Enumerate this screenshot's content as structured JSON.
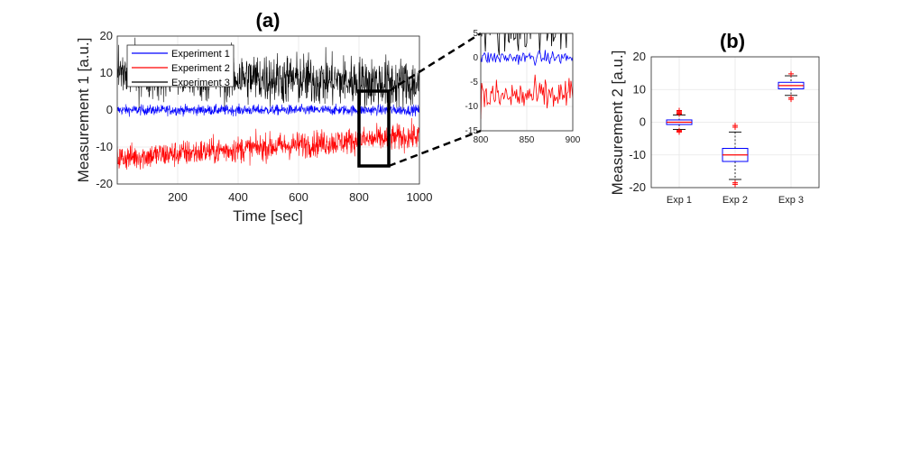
{
  "chart_data": [
    {
      "id": "a",
      "type": "line",
      "title": "(a)",
      "xlabel": "Time [sec]",
      "ylabel": "Measurement 1 [a.u.]",
      "xlim": [
        0,
        1000
      ],
      "ylim": [
        -20,
        20
      ],
      "xticks": [
        200,
        400,
        600,
        800,
        1000
      ],
      "yticks": [
        -20,
        -10,
        0,
        10,
        20
      ],
      "grid": true,
      "legend": "top-left",
      "highlight_box": {
        "x": [
          800,
          900
        ],
        "y": [
          -15,
          5
        ]
      },
      "series": [
        {
          "name": "Experiment 1",
          "color": "#0000ff",
          "mean": 0,
          "spread": 0.7,
          "trend": [
            0,
            0
          ]
        },
        {
          "name": "Experiment 2",
          "color": "#ff0000",
          "mean": -10,
          "spread": 1.8,
          "trend": [
            -13,
            -7
          ]
        },
        {
          "name": "Experiment 3",
          "color": "#000000",
          "mean": 10,
          "spread": 3.5,
          "trend": [
            10,
            7
          ]
        }
      ]
    },
    {
      "id": "a-inset",
      "type": "line",
      "title": "",
      "xlim": [
        800,
        900
      ],
      "ylim": [
        -15,
        5
      ],
      "xticks": [
        800,
        850,
        900
      ],
      "yticks": [
        -15,
        -10,
        -5,
        0,
        5
      ],
      "grid": true
    },
    {
      "id": "b",
      "type": "box",
      "title": "(b)",
      "xlabel": "",
      "ylabel": "Measurement 2 [a.u.]",
      "ylim": [
        -20,
        20
      ],
      "yticks": [
        -20,
        -10,
        0,
        10,
        20
      ],
      "grid": true,
      "box_color": "#0000ff",
      "median_color": "#ff0000",
      "outlier_color": "#ff0000",
      "categories": [
        "Exp 1",
        "Exp 2",
        "Exp 3"
      ],
      "boxes": [
        {
          "min": -2.2,
          "q1": -0.7,
          "median": 0,
          "q3": 0.7,
          "max": 2.2,
          "outliers": [
            -2.5,
            -2.8,
            -3.0,
            2.5,
            2.8,
            3.1,
            3.4,
            3.6
          ]
        },
        {
          "min": -17.5,
          "q1": -12,
          "median": -10,
          "q3": -8,
          "max": -3,
          "outliers": [
            -18.5,
            -19,
            -1.5,
            -1
          ]
        },
        {
          "min": 8.2,
          "q1": 10.2,
          "median": 11.2,
          "q3": 12.2,
          "max": 14.2,
          "outliers": [
            7.5,
            7,
            14.8
          ]
        }
      ]
    }
  ]
}
